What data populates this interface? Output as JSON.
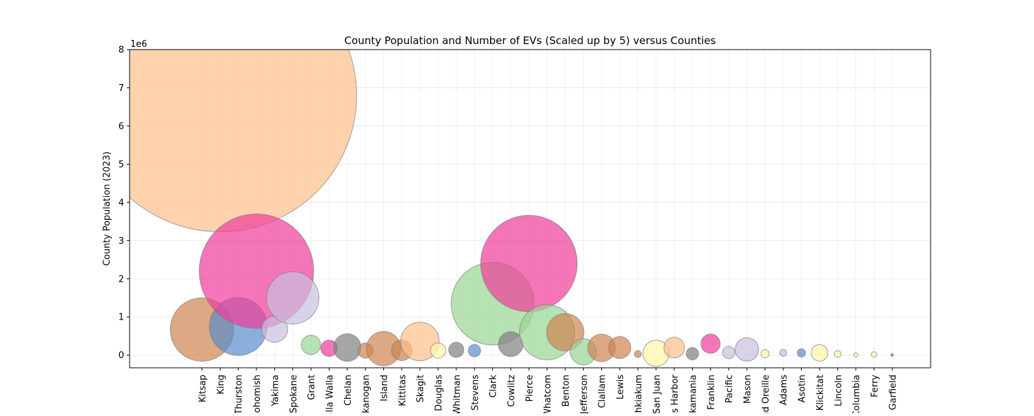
{
  "chart_data": {
    "type": "scatter",
    "title": "County Population and Number of EVs (Scaled up by 5) versus Counties",
    "xlabel": "",
    "ylabel": "County Population (2023)",
    "y_offset_label": "1e6",
    "ylim": [
      -330000,
      8000000
    ],
    "y_ticks": [
      0,
      1000000,
      2000000,
      3000000,
      4000000,
      5000000,
      6000000,
      7000000,
      8000000
    ],
    "y_tick_labels": [
      "0",
      "1",
      "2",
      "3",
      "4",
      "5",
      "6",
      "7",
      "8"
    ],
    "grid": true,
    "size_encoding": "Number of EVs (Scaled up by 5)",
    "points": [
      {
        "county": "Kitsap",
        "population": 670000,
        "color": "#cd8550"
      },
      {
        "county": "King",
        "population": 6800000,
        "color": "#fdbf8a"
      },
      {
        "county": "Thurston",
        "population": 750000,
        "color": "#5b8cca"
      },
      {
        "county": "Snohomish",
        "population": 2200000,
        "color": "#ef3c9a"
      },
      {
        "county": "Yakima",
        "population": 680000,
        "color": "#c9bfdf"
      },
      {
        "county": "Spokane",
        "population": 1500000,
        "color": "#c9bfdf"
      },
      {
        "county": "Grant",
        "population": 270000,
        "color": "#98d594"
      },
      {
        "county": "Walla Walla",
        "population": 180000,
        "color": "#ef3c9a"
      },
      {
        "county": "Chelan",
        "population": 200000,
        "color": "#808080"
      },
      {
        "county": "Okanogan",
        "population": 120000,
        "color": "#cd8550"
      },
      {
        "county": "Island",
        "population": 170000,
        "color": "#cd8550"
      },
      {
        "county": "Kittitas",
        "population": 130000,
        "color": "#cd8550"
      },
      {
        "county": "Skagit",
        "population": 360000,
        "color": "#fdbf8a"
      },
      {
        "county": "Douglas",
        "population": 120000,
        "color": "#fff7a8"
      },
      {
        "county": "Whitman",
        "population": 140000,
        "color": "#808080"
      },
      {
        "county": "Stevens",
        "population": 120000,
        "color": "#5b8cca"
      },
      {
        "county": "Clark",
        "population": 1350000,
        "color": "#98d594"
      },
      {
        "county": "Cowlitz",
        "population": 290000,
        "color": "#808080"
      },
      {
        "county": "Pierce",
        "population": 2400000,
        "color": "#ef3c9a"
      },
      {
        "county": "Whatcom",
        "population": 600000,
        "color": "#98d594"
      },
      {
        "county": "Benton",
        "population": 600000,
        "color": "#cd8550"
      },
      {
        "county": "Jefferson",
        "population": 90000,
        "color": "#98d594"
      },
      {
        "county": "Clallam",
        "population": 190000,
        "color": "#cd8550"
      },
      {
        "county": "Lewis",
        "population": 200000,
        "color": "#cd8550"
      },
      {
        "county": "Wahkiakum",
        "population": 30000,
        "color": "#cd8550"
      },
      {
        "county": "San Juan",
        "population": 50000,
        "color": "#fff7a8"
      },
      {
        "county": "Grays Harbor",
        "population": 200000,
        "color": "#fdbf8a"
      },
      {
        "county": "Skamania",
        "population": 40000,
        "color": "#808080"
      },
      {
        "county": "Franklin",
        "population": 300000,
        "color": "#ef3c9a"
      },
      {
        "county": "Pacific",
        "population": 70000,
        "color": "#c9bfdf"
      },
      {
        "county": "Mason",
        "population": 150000,
        "color": "#c9bfdf"
      },
      {
        "county": "Pend Oreille",
        "population": 40000,
        "color": "#fff7a8"
      },
      {
        "county": "Adams",
        "population": 60000,
        "color": "#c9bfdf"
      },
      {
        "county": "Asotin",
        "population": 60000,
        "color": "#5b8cca"
      },
      {
        "county": "Klickitat",
        "population": 60000,
        "color": "#fff7a8"
      },
      {
        "county": "Lincoln",
        "population": 30000,
        "color": "#fff7a8"
      },
      {
        "county": "Columbia",
        "population": 10000,
        "color": "#fff7a8"
      },
      {
        "county": "Ferry",
        "population": 20000,
        "color": "#fff7a8"
      },
      {
        "county": "Garfield",
        "population": 5000,
        "color": "#808080"
      }
    ]
  }
}
